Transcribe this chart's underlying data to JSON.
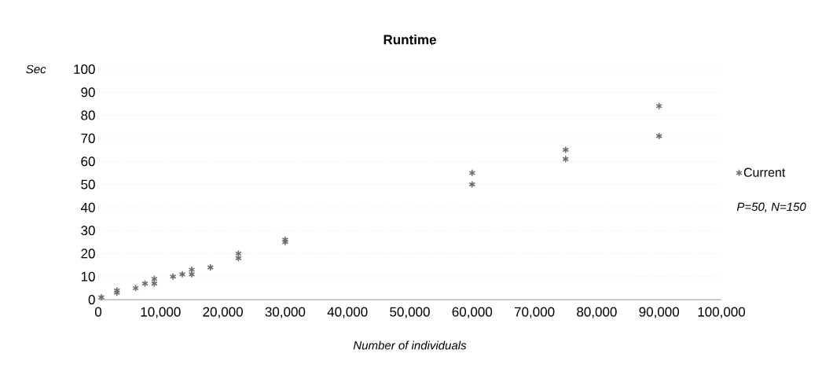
{
  "chart_data": {
    "type": "scatter",
    "title": "Runtime",
    "xlabel": "Number of individuals",
    "ylabel": "Sec",
    "x": [
      500,
      3000,
      3000,
      6000,
      7500,
      9000,
      9000,
      12000,
      13500,
      15000,
      15000,
      18000,
      22500,
      22500,
      30000,
      30000,
      60000,
      60000,
      75000,
      75000,
      90000,
      90000
    ],
    "series": [
      {
        "name": "Current",
        "color": "#6e6e6e",
        "values": [
          1,
          3,
          4,
          5,
          7,
          7,
          9,
          10,
          11,
          11,
          13,
          14,
          18,
          20,
          25,
          26,
          50,
          55,
          61,
          65,
          71,
          84
        ]
      }
    ],
    "xlim": [
      0,
      100000
    ],
    "ylim": [
      0,
      100
    ],
    "xticks": [
      {
        "value": 0,
        "label": "0"
      },
      {
        "value": 10000,
        "label": "10,000"
      },
      {
        "value": 20000,
        "label": "20,000"
      },
      {
        "value": 30000,
        "label": "30,000"
      },
      {
        "value": 40000,
        "label": "40,000"
      },
      {
        "value": 50000,
        "label": "50,000"
      },
      {
        "value": 60000,
        "label": "60,000"
      },
      {
        "value": 70000,
        "label": "70,000"
      },
      {
        "value": 80000,
        "label": "80,000"
      },
      {
        "value": 90000,
        "label": "90,000"
      },
      {
        "value": 100000,
        "label": "100,000"
      }
    ],
    "yticks": [
      0,
      10,
      20,
      30,
      40,
      50,
      60,
      70,
      80,
      90,
      100
    ],
    "grid": "y",
    "legend": "right",
    "marker": "cross",
    "annotations": [
      "P=50, N=150"
    ]
  }
}
